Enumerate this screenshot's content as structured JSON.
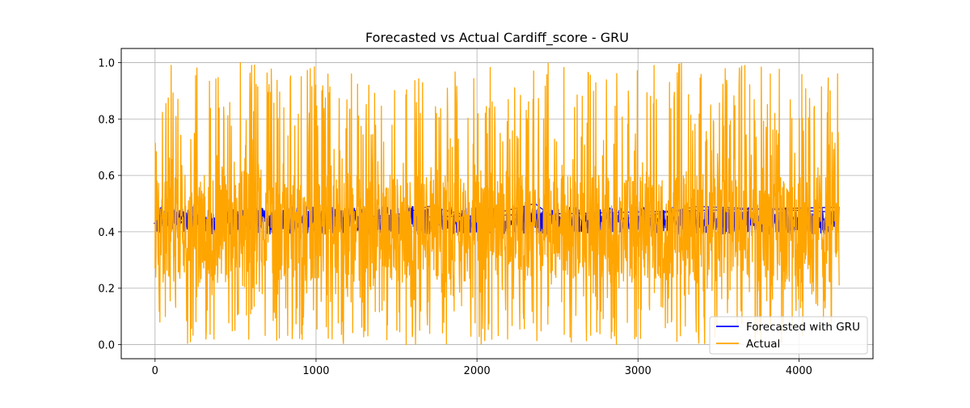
{
  "chart_data": {
    "type": "line",
    "title": "Forecasted vs Actual Cardiff_score - GRU",
    "xlabel": "",
    "ylabel": "",
    "xlim": [
      -210,
      4460
    ],
    "ylim": [
      -0.05,
      1.05
    ],
    "xticks": [
      0,
      1000,
      2000,
      3000,
      4000
    ],
    "xtick_labels": [
      "0",
      "1000",
      "2000",
      "3000",
      "4000"
    ],
    "yticks": [
      0.0,
      0.2,
      0.4,
      0.6,
      0.8,
      1.0
    ],
    "ytick_labels": [
      "0.0",
      "0.2",
      "0.4",
      "0.6",
      "0.8",
      "1.0"
    ],
    "grid": true,
    "legend_position": "lower right",
    "n_points": 4250,
    "series": [
      {
        "name": "Forecasted with GRU",
        "color": "#0000ff",
        "typical_range": [
          0.38,
          0.5
        ],
        "sample_points": [
          [
            0,
            0.43
          ],
          [
            500,
            0.45
          ],
          [
            1000,
            0.44
          ],
          [
            1500,
            0.46
          ],
          [
            1700,
            0.49
          ],
          [
            2000,
            0.45
          ],
          [
            2360,
            0.5
          ],
          [
            2500,
            0.44
          ],
          [
            3000,
            0.45
          ],
          [
            3370,
            0.49
          ],
          [
            3800,
            0.48
          ],
          [
            4240,
            0.47
          ]
        ]
      },
      {
        "name": "Actual",
        "color": "#ffa500",
        "value_range": [
          0.0,
          1.0
        ],
        "typical_range": [
          0.25,
          0.55
        ],
        "sample_points": [
          [
            0,
            0.27
          ],
          [
            5,
            0.98
          ],
          [
            30,
            0.08
          ],
          [
            100,
            0.99
          ],
          [
            220,
            0.01
          ],
          [
            530,
            1.0
          ],
          [
            600,
            0.99
          ],
          [
            1560,
            0.0
          ],
          [
            1700,
            0.49
          ],
          [
            2190,
            0.02
          ],
          [
            2360,
            0.5
          ],
          [
            3100,
            0.99
          ],
          [
            4200,
            0.06
          ],
          [
            4240,
            0.96
          ],
          [
            4250,
            0.21
          ]
        ]
      }
    ]
  }
}
